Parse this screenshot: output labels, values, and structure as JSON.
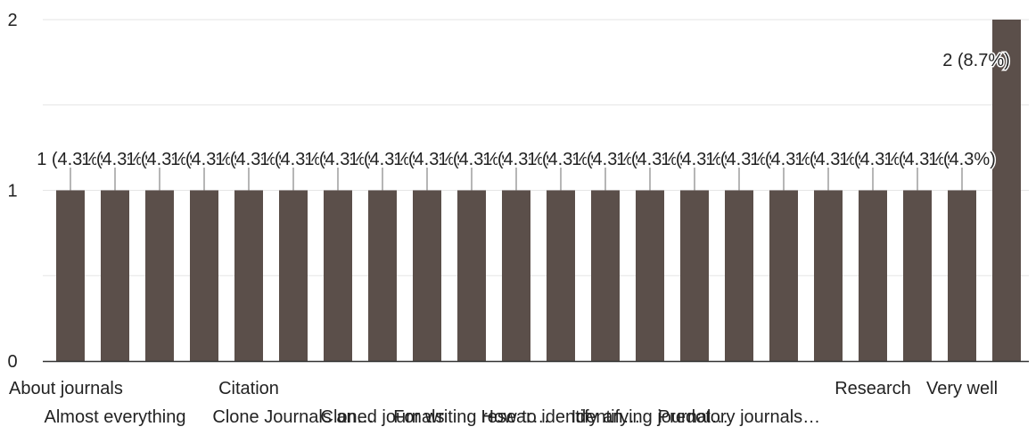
{
  "chart_data": {
    "type": "bar",
    "title": "",
    "xlabel": "",
    "ylabel": "",
    "ylim": [
      0,
      2
    ],
    "y_ticks": [
      "0",
      "1",
      "2"
    ],
    "grid": "horizontal",
    "legend": "none",
    "categories": [
      "About journals",
      "Almost everything",
      "",
      "",
      "Citation",
      "Clone Journals an…",
      "",
      "Cloned journals",
      "",
      "For writing resear…",
      "",
      "How to identify an…",
      "",
      "Identifying journal…",
      "",
      "Predotory journals…",
      "",
      "",
      "Research",
      "",
      "Very well",
      ""
    ],
    "category_count": 22,
    "values": [
      1,
      1,
      1,
      1,
      1,
      1,
      1,
      1,
      1,
      1,
      1,
      1,
      1,
      1,
      1,
      1,
      1,
      1,
      1,
      1,
      1,
      2
    ],
    "data_labels": [
      "1 (4.3%)",
      "1 (4.3%)",
      "1 (4.3%)",
      "1 (4.3%)",
      "1 (4.3%)",
      "1 (4.3%)",
      "1 (4.3%)",
      "1 (4.3%)",
      "1 (4.3%)",
      "1 (4.3%)",
      "1 (4.3%)",
      "1 (4.3%)",
      "1 (4.3%)",
      "1 (4.3%)",
      "1 (4.3%)",
      "1 (4.3%)",
      "1 (4.3%)",
      "1 (4.3%)",
      "1 (4.3%)",
      "1 (4.3%)",
      "1 (4.3%)",
      "2 (8.7%)"
    ],
    "colors": {
      "bar": "#5b4f4a",
      "grid": "#e6e6e6",
      "baseline": "#333333",
      "text": "#222222",
      "leader": "#9e9e9e",
      "background": "#ffffff"
    }
  }
}
